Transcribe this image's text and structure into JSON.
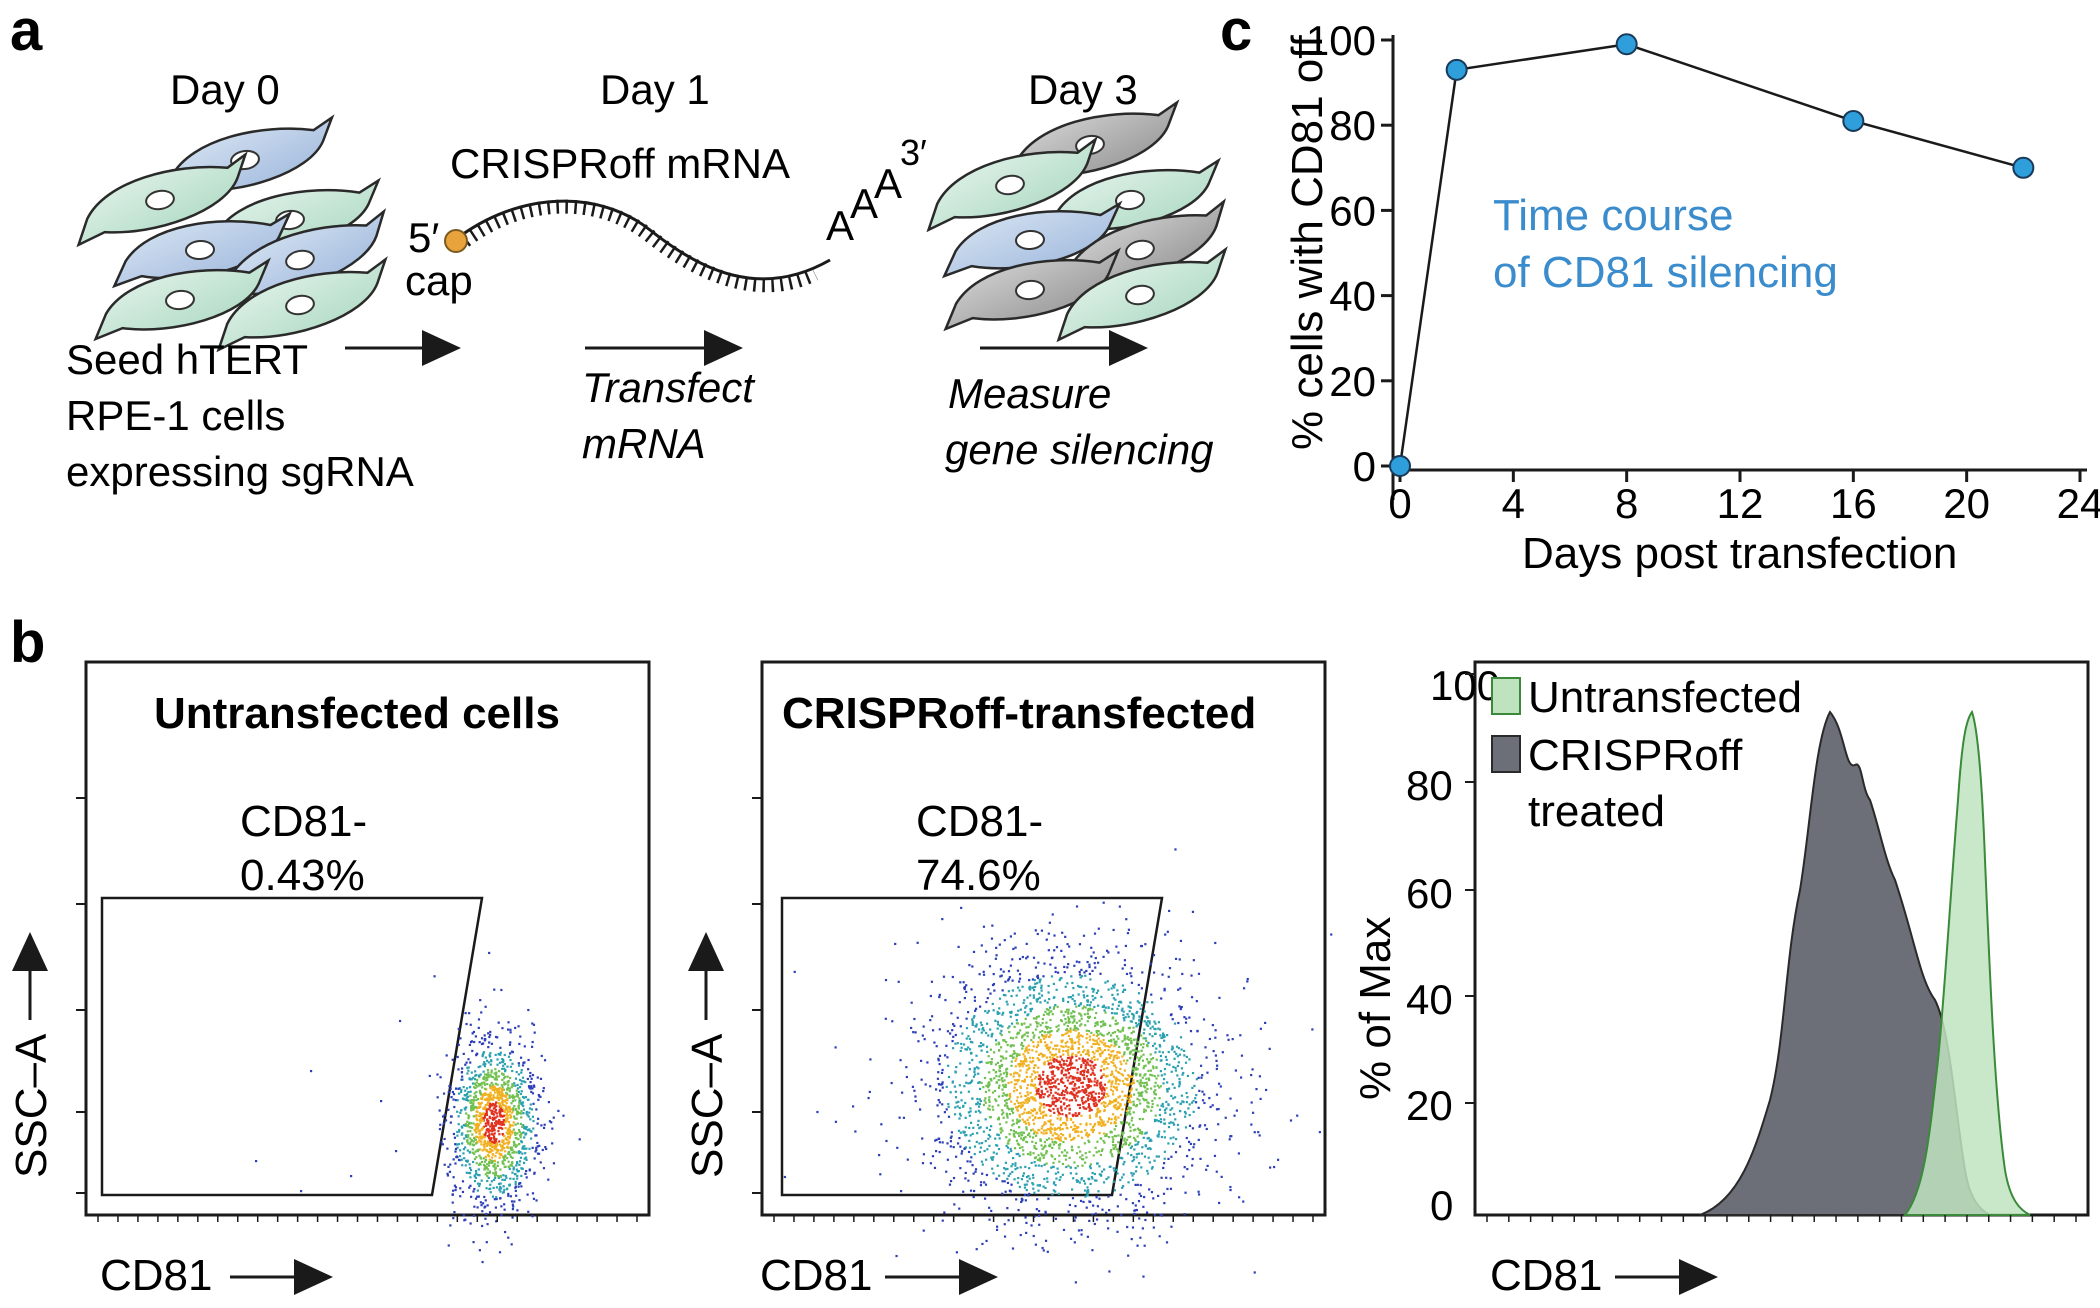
{
  "panel_a": {
    "label": "a",
    "day0": "Day 0",
    "day1": "Day 1",
    "day3": "Day 3",
    "mrna_label": "CRISPRoff mRNA",
    "five_prime": "5′",
    "cap": "cap",
    "three_prime": "3′",
    "polyA": "A",
    "seed_lines": [
      "Seed hTERT",
      "RPE-1 cells",
      "expressing sgRNA"
    ],
    "transfect_lines": [
      "Transfect",
      "mRNA"
    ],
    "measure_lines": [
      "Measure",
      "gene silencing"
    ],
    "colors": {
      "green_cell": "#c6e7d6",
      "blue_cell": "#b5c6e6",
      "gray_cell": "#a9a9a9",
      "cap": "#e8a33c"
    }
  },
  "panel_b": {
    "label": "b",
    "plot1": {
      "title": "Untransfected cells",
      "gate_name": "CD81-",
      "gate_pct": "0.43%",
      "xlabel": "CD81",
      "ylabel": "SSC–A"
    },
    "plot2": {
      "title": "CRISPRoff-transfected",
      "gate_name": "CD81-",
      "gate_pct": "74.6%",
      "xlabel": "CD81",
      "ylabel": "SSC–A"
    },
    "histogram": {
      "ylabel": "% of Max",
      "xlabel": "CD81",
      "yticks": [
        "0",
        "20",
        "40",
        "60",
        "80",
        "100"
      ],
      "legend": [
        "Untransfected",
        "CRISPRoff",
        "treated"
      ],
      "colors": {
        "untransfected": "#bfe3bf",
        "crisproff": "#6d6f78"
      }
    }
  },
  "chart_data": {
    "type": "line",
    "label": "c",
    "title": "",
    "annotation_lines": [
      "Time course",
      "of CD81 silencing"
    ],
    "xlabel": "Days post transfection",
    "ylabel": "% cells with CD81 off",
    "x": [
      0,
      2,
      8,
      16,
      22
    ],
    "y": [
      0,
      93,
      99,
      81,
      70
    ],
    "xlim": [
      0,
      24
    ],
    "ylim": [
      0,
      100
    ],
    "xticks": [
      0,
      4,
      8,
      12,
      16,
      20,
      24
    ],
    "yticks": [
      0,
      20,
      40,
      60,
      80,
      100
    ],
    "marker_color": "#2f9fdb"
  }
}
